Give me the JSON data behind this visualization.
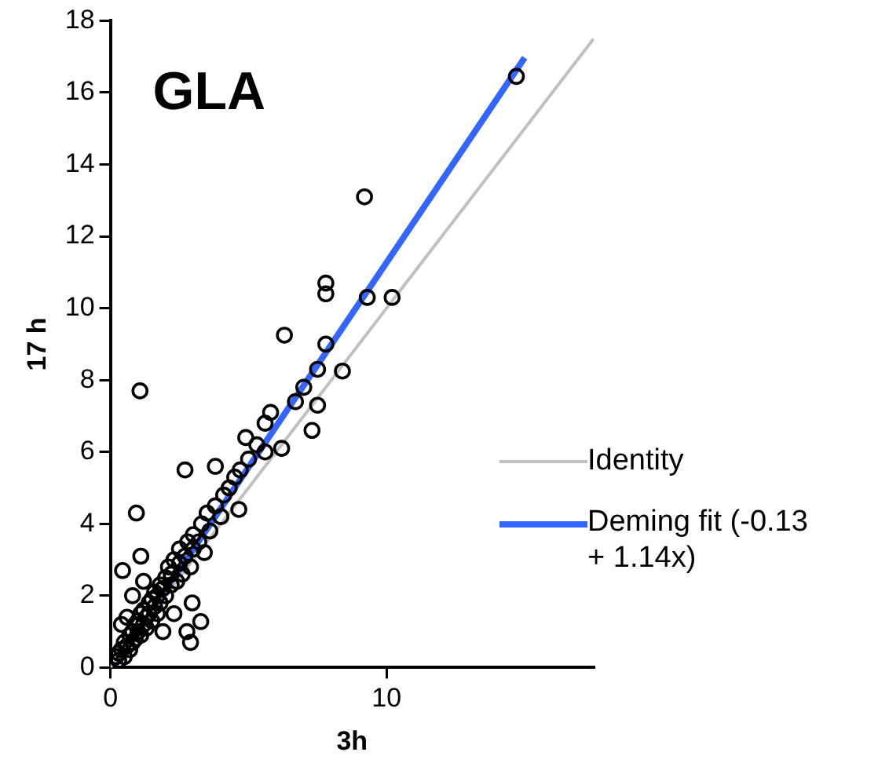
{
  "chart_data": {
    "type": "scatter",
    "title": "GLA",
    "xlabel": "3h",
    "ylabel": "17 h",
    "xlim": [
      0,
      17.5
    ],
    "xticks": [
      0,
      10
    ],
    "ylim": [
      0,
      18
    ],
    "yticks": [
      0,
      2,
      4,
      6,
      8,
      10,
      12,
      14,
      16,
      18
    ],
    "grid": false,
    "legend": "bottom right",
    "series": [
      {
        "marker": "circle",
        "color": "#000000",
        "x": [
          0.2,
          0.3,
          0.3,
          0.4,
          0.5,
          0.5,
          0.6,
          0.7,
          0.7,
          0.8,
          0.8,
          0.9,
          0.9,
          1.0,
          1.0,
          1.1,
          1.1,
          1.2,
          1.2,
          1.3,
          1.3,
          1.4,
          1.4,
          1.5,
          1.5,
          1.6,
          1.6,
          1.7,
          1.7,
          1.8,
          1.8,
          1.9,
          2.0,
          2.0,
          2.1,
          2.2,
          2.2,
          2.3,
          2.4,
          2.5,
          2.5,
          2.6,
          2.7,
          2.8,
          2.9,
          3.0,
          3.0,
          3.2,
          3.3,
          3.4,
          3.5,
          3.6,
          3.8,
          4.0,
          4.1,
          4.3,
          4.5,
          4.7,
          5.0,
          5.3,
          1.9,
          2.3,
          0.6,
          0.4,
          1.2,
          0.8,
          14.7,
          9.2,
          7.8,
          7.8,
          9.3,
          10.2,
          6.3,
          7.8,
          7.5,
          8.4,
          7.0,
          7.5,
          6.7,
          7.3,
          1.07,
          0.94,
          2.7,
          0.44,
          1.1,
          2.96,
          3.27,
          2.9,
          2.77,
          6.2,
          5.6,
          4.9,
          5.8,
          5.6,
          4.65,
          3.8
        ],
        "values": [
          0.3,
          0.2,
          0.4,
          0.5,
          0.3,
          0.7,
          0.6,
          0.9,
          0.5,
          1.0,
          0.7,
          1.2,
          0.8,
          1.3,
          1.0,
          1.5,
          0.9,
          1.2,
          1.6,
          1.4,
          1.1,
          1.8,
          1.5,
          1.3,
          1.9,
          1.7,
          2.1,
          1.5,
          2.0,
          2.3,
          1.8,
          2.2,
          2.0,
          2.5,
          2.8,
          2.3,
          2.6,
          3.0,
          2.4,
          2.9,
          3.3,
          2.6,
          3.1,
          3.5,
          2.8,
          3.3,
          3.7,
          3.5,
          4.0,
          3.2,
          4.3,
          3.8,
          4.5,
          4.2,
          4.8,
          5.0,
          5.3,
          5.5,
          5.8,
          6.2,
          1.0,
          1.5,
          1.4,
          1.2,
          2.4,
          2.0,
          16.45,
          13.1,
          10.7,
          10.4,
          10.3,
          10.3,
          9.25,
          9.0,
          8.3,
          8.25,
          7.8,
          7.3,
          7.4,
          6.6,
          7.7,
          4.3,
          5.5,
          2.7,
          3.1,
          1.8,
          1.28,
          0.7,
          1.0,
          6.1,
          6.0,
          6.4,
          7.1,
          6.8,
          4.4,
          5.6
        ]
      },
      {
        "type": "line",
        "marker": "none",
        "name": "Identity",
        "color": "#c0c0c0",
        "x": [
          0,
          17.5
        ],
        "values": [
          0,
          17.5
        ]
      },
      {
        "type": "line",
        "marker": "none",
        "name": "Deming fit (-0.13 + 1.14x)",
        "color": "#3366ff",
        "x": [
          0.12,
          15
        ],
        "values": [
          0.01,
          16.97
        ]
      }
    ]
  }
}
